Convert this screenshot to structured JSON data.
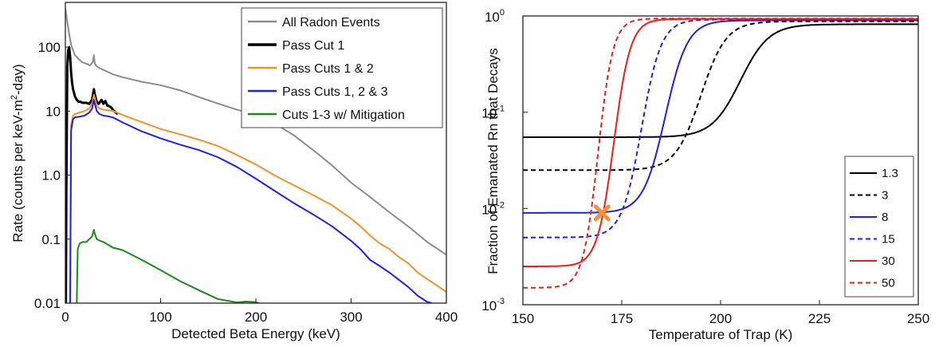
{
  "chart_data": [
    {
      "type": "line",
      "xlabel": "Detected Beta Energy (keV)",
      "ylabel_main": "Rate (counts per keV-m",
      "ylabel_sup": "2",
      "ylabel_end": "-day)",
      "xlim": [
        0,
        400
      ],
      "ylim": [
        0.01,
        500
      ],
      "yscale": "log",
      "grid": false,
      "legend_position": "top-right",
      "xticks": [
        {
          "v": 0,
          "label": "0"
        },
        {
          "v": 100,
          "label": "100"
        },
        {
          "v": 200,
          "label": "200"
        },
        {
          "v": 300,
          "label": "300"
        },
        {
          "v": 400,
          "label": "400"
        }
      ],
      "yticks": [
        {
          "v": 0.01,
          "label": "0.01"
        },
        {
          "v": 0.1,
          "label": "0.1"
        },
        {
          "v": 1,
          "label": "1.0"
        },
        {
          "v": 10,
          "label": "10"
        },
        {
          "v": 100,
          "label": "100"
        }
      ],
      "series": [
        {
          "name": "All Radon Events",
          "color": "#8c8c8c",
          "width": 2,
          "x": [
            0,
            2,
            4,
            6,
            8,
            10,
            14,
            18,
            22,
            26,
            29,
            30,
            31,
            33,
            36,
            40,
            45,
            50,
            60,
            80,
            100,
            120,
            140,
            160,
            180,
            200,
            220,
            240,
            260,
            280,
            300,
            320,
            340,
            360,
            380,
            400
          ],
          "y": [
            400,
            250,
            160,
            110,
            90,
            75,
            65,
            58,
            55,
            52,
            60,
            75,
            55,
            50,
            47,
            44,
            42,
            40,
            35,
            28,
            24,
            20.5,
            17,
            14,
            11,
            8.5,
            6,
            4,
            2.5,
            1.5,
            0.8,
            0.45,
            0.25,
            0.15,
            0.09,
            0.06
          ]
        },
        {
          "name": "Pass Cut 1",
          "color": "#000000",
          "width": 3,
          "x": [
            0.5,
            1,
            2,
            3,
            4,
            5,
            6,
            7,
            8,
            10,
            12,
            14,
            16,
            18,
            20,
            22,
            25,
            28,
            30,
            31,
            33,
            35,
            38,
            40,
            42,
            44,
            45,
            48,
            50,
            55
          ],
          "y": [
            0.01,
            0.5,
            50,
            90,
            100,
            70,
            40,
            28,
            22,
            17,
            15,
            14,
            14,
            13.5,
            13.5,
            13.5,
            13,
            15,
            22,
            18,
            14,
            13,
            15,
            13,
            15,
            12,
            11.5,
            11,
            10.5,
            9.5
          ]
        },
        {
          "name": "Pass Cuts 1 & 2",
          "color": "#f4922a",
          "width": 2,
          "x": [
            5,
            6,
            8,
            10,
            15,
            20,
            25,
            28,
            30,
            31,
            33,
            36,
            40,
            45,
            50,
            60,
            80,
            100,
            120,
            140,
            160,
            180,
            200,
            220,
            240,
            260,
            280,
            300,
            310,
            320,
            330,
            340,
            350,
            360,
            370,
            380,
            390,
            400
          ],
          "y": [
            0.01,
            6,
            8.5,
            9,
            9.5,
            10,
            11,
            13,
            18,
            16,
            12,
            11,
            10.5,
            10,
            9.5,
            8.5,
            7,
            5.6,
            4.5,
            3.5,
            2.7,
            2,
            1.5,
            1.05,
            0.72,
            0.48,
            0.32,
            0.2,
            0.16,
            0.12,
            0.09,
            0.07,
            0.05,
            0.04,
            0.03,
            0.025,
            0.02,
            0.015
          ]
        },
        {
          "name": "Pass Cuts 1, 2 & 3",
          "color": "#1f1ff0",
          "width": 2,
          "x": [
            5,
            6,
            8,
            10,
            15,
            20,
            25,
            28,
            30,
            31,
            33,
            36,
            40,
            45,
            50,
            60,
            80,
            100,
            120,
            140,
            160,
            180,
            200,
            220,
            240,
            260,
            280,
            300,
            310,
            320,
            330,
            340,
            350,
            360,
            370,
            380,
            390,
            400
          ],
          "y": [
            0.01,
            5,
            7.5,
            8,
            8.2,
            8.5,
            9.5,
            11,
            15,
            13,
            10,
            9,
            8.5,
            8,
            7.5,
            6.5,
            5,
            4,
            3.1,
            2.4,
            1.8,
            1.3,
            0.9,
            0.6,
            0.38,
            0.24,
            0.15,
            0.09,
            0.07,
            0.05,
            0.04,
            0.03,
            0.022,
            0.017,
            0.013,
            0.011,
            0.01,
            0.01
          ]
        },
        {
          "name": "Cuts 1-3 w/ Mitigation",
          "color": "#1a8a1a",
          "width": 2,
          "x": [
            12,
            13,
            15,
            18,
            22,
            25,
            28,
            30,
            31,
            33,
            36,
            40,
            50,
            60,
            80,
            100,
            120,
            140,
            160,
            180,
            190,
            200,
            205,
            210
          ],
          "y": [
            0.01,
            0.07,
            0.085,
            0.09,
            0.09,
            0.1,
            0.11,
            0.14,
            0.12,
            0.1,
            0.095,
            0.09,
            0.075,
            0.065,
            0.045,
            0.032,
            0.023,
            0.017,
            0.012,
            0.01,
            0.01,
            0.01,
            0.01,
            0.01
          ]
        }
      ]
    },
    {
      "type": "line",
      "xlabel": "Temperature of Trap (K)",
      "ylabel": "Fraction of Emanated Rn that Decays",
      "xlim": [
        150,
        250
      ],
      "ylim": [
        0.001,
        1
      ],
      "yscale": "log",
      "grid": false,
      "legend_position": "bottom-right",
      "xticks": [
        {
          "v": 150,
          "label": "150"
        },
        {
          "v": 175,
          "label": "175"
        },
        {
          "v": 200,
          "label": "200"
        },
        {
          "v": 225,
          "label": "225"
        },
        {
          "v": 250,
          "label": "250"
        }
      ],
      "yticks": [
        {
          "v": 0.001,
          "base": "10",
          "exp": "-3"
        },
        {
          "v": 0.01,
          "base": "10",
          "exp": "-2"
        },
        {
          "v": 0.1,
          "base": "10",
          "exp": "-1"
        },
        {
          "v": 1,
          "base": "10",
          "exp": "0"
        }
      ],
      "series": [
        {
          "name": "1.3",
          "color": "#000000",
          "dash": false,
          "floor": 0.055,
          "ceil": 0.82,
          "mid": 205,
          "width_k": 3.6
        },
        {
          "name": "3",
          "color": "#000000",
          "dash": true,
          "floor": 0.025,
          "ceil": 0.88,
          "mid": 195,
          "width_k": 3.2
        },
        {
          "name": "8",
          "color": "#1f1ff0",
          "dash": false,
          "floor": 0.009,
          "ceil": 0.9,
          "mid": 186,
          "width_k": 2.8
        },
        {
          "name": "15",
          "color": "#1f1ff0",
          "dash": true,
          "floor": 0.005,
          "ceil": 0.92,
          "mid": 180,
          "width_k": 2.5
        },
        {
          "name": "30",
          "color": "#ee1c1c",
          "dash": false,
          "floor": 0.0025,
          "ceil": 0.93,
          "mid": 173,
          "width_k": 2.1
        },
        {
          "name": "50",
          "color": "#ee1c1c",
          "dash": true,
          "floor": 0.0015,
          "ceil": 0.94,
          "mid": 169,
          "width_k": 1.9
        }
      ],
      "marker": {
        "x": 170,
        "y": 0.009,
        "color": "#f39237",
        "shape": "x"
      }
    }
  ]
}
